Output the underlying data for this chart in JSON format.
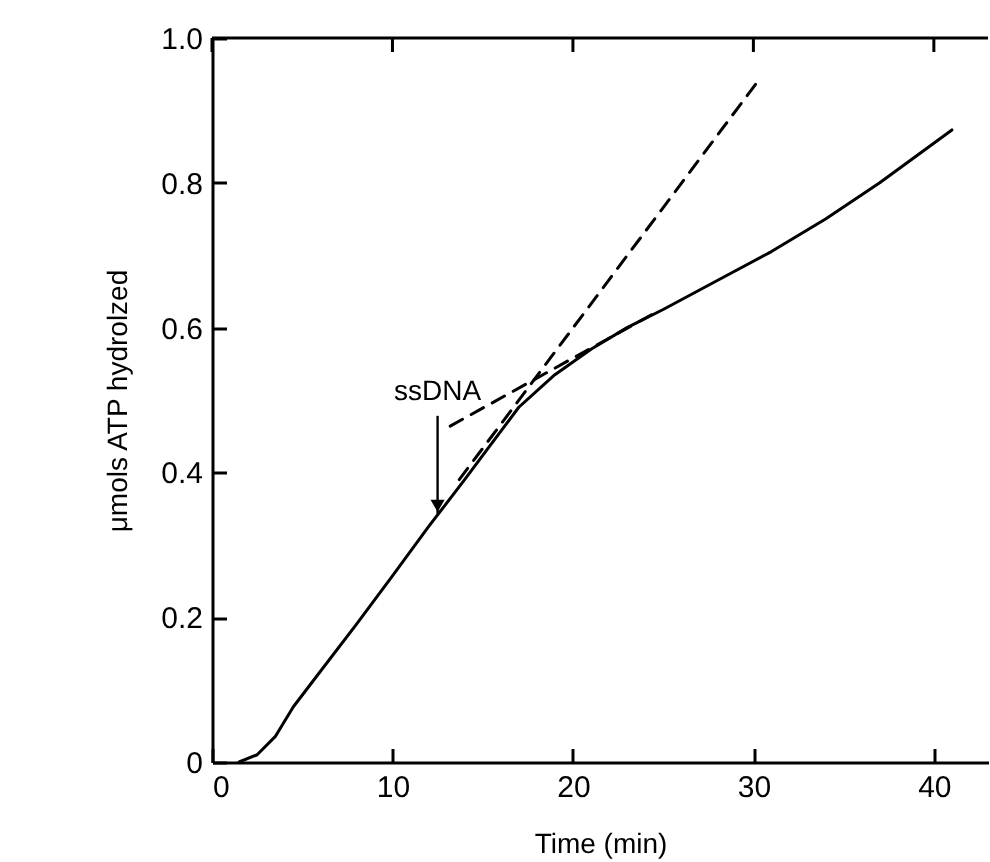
{
  "chart_data": {
    "type": "line",
    "xlabel": "Time (min)",
    "ylabel": "μmols ATP hydrolzed",
    "xlim": [
      0,
      43
    ],
    "ylim": [
      0,
      1.0
    ],
    "xticks": [
      0,
      10,
      20,
      30,
      40
    ],
    "yticks": [
      0,
      {
        "value": 0.2,
        "label": "0.2"
      },
      {
        "value": 0.4,
        "label": "0.4"
      },
      {
        "value": 0.6,
        "label": "0.6"
      },
      {
        "value": 0.8,
        "label": "0.8"
      },
      {
        "value": 1.0,
        "label": "1.0"
      }
    ],
    "series": [
      {
        "color": "#000000",
        "line_style": "solid",
        "x": [
          1.5,
          2.5,
          3.5,
          4.5,
          6,
          8,
          10,
          12,
          14,
          15.5,
          17,
          19,
          21,
          23,
          25,
          28,
          31,
          34,
          37,
          41
        ],
        "values": [
          0,
          0.01,
          0.035,
          0.076,
          0.125,
          0.19,
          0.257,
          0.325,
          0.39,
          0.44,
          0.49,
          0.535,
          0.57,
          0.6,
          0.625,
          0.665,
          0.705,
          0.75,
          0.8,
          0.873
        ]
      },
      {
        "type": "line",
        "color": "#000000",
        "line_style": "dashed",
        "x": [
          13.7,
          30.3
        ],
        "values": [
          0.39,
          0.942
        ]
      },
      {
        "type": "line",
        "color": "#000000",
        "line_style": "dashed",
        "x": [
          13.2,
          24.8
        ],
        "values": [
          0.464,
          0.624
        ]
      }
    ],
    "annotations": [
      {
        "text": "ssDNA",
        "x": 12.5,
        "y": 0.34
      }
    ]
  }
}
